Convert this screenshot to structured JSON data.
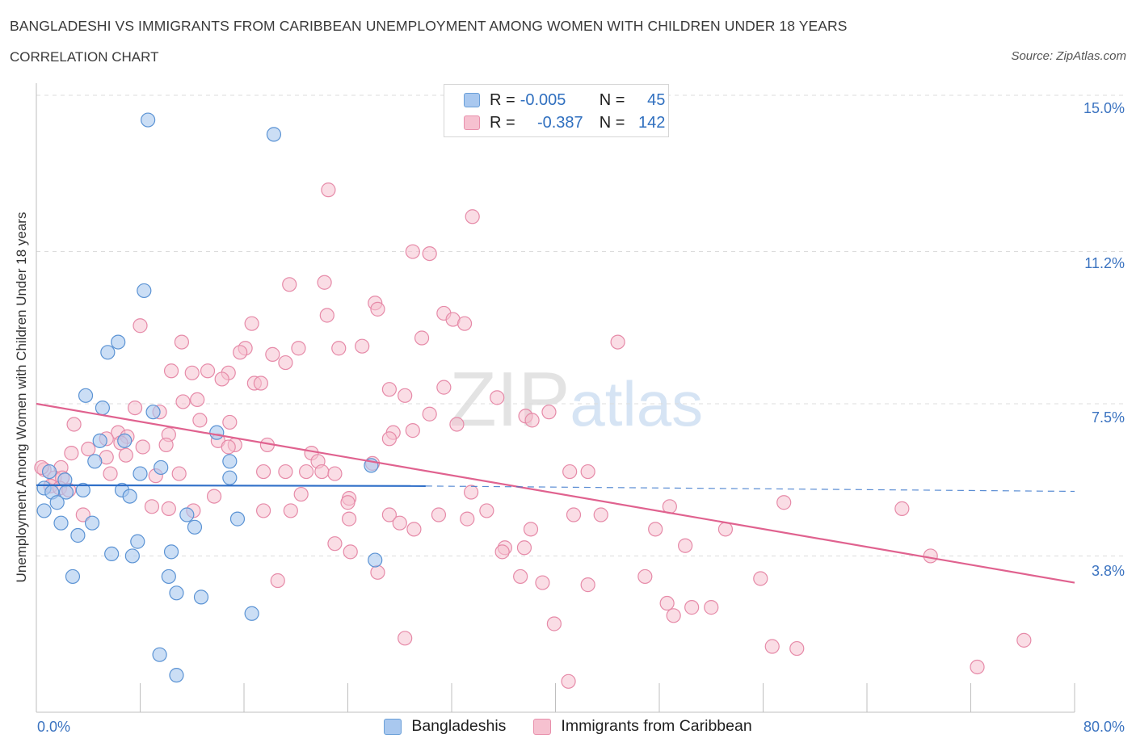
{
  "header": {
    "title": "BANGLADESHI VS IMMIGRANTS FROM CARIBBEAN UNEMPLOYMENT AMONG WOMEN WITH CHILDREN UNDER 18 YEARS",
    "subtitle": "CORRELATION CHART",
    "source": "Source: ZipAtlas.com"
  },
  "watermark": {
    "zip": "ZIP",
    "atlas": "atlas"
  },
  "legend": {
    "r_label": "R =",
    "n_label": "N =",
    "rows": [
      {
        "r": "-0.005",
        "n": "45",
        "color": "#a9c8ef",
        "border": "#6a9fd8"
      },
      {
        "r": "-0.387",
        "n": "142",
        "color": "#f6c1d0",
        "border": "#e890ac"
      }
    ]
  },
  "bottom_legend": [
    "Bangladeshis",
    "Immigrants from Caribbean"
  ],
  "colors": {
    "blue_fill": "#a9c8ef",
    "blue_stroke": "#5b93d4",
    "blue_line": "#2f6fc8",
    "pink_fill": "#f6c1d0",
    "pink_stroke": "#e68aa8",
    "pink_line": "#e0628f",
    "grid": "#dcdcdc",
    "tick_text": "#3b73c0"
  },
  "chart_data": {
    "type": "scatter",
    "title": "BANGLADESHI VS IMMIGRANTS FROM CARIBBEAN UNEMPLOYMENT AMONG WOMEN WITH CHILDREN UNDER 18 YEARS",
    "xlabel": "",
    "ylabel": "Unemployment Among Women with Children Under 18 years",
    "xlim": [
      0,
      80
    ],
    "ylim": [
      0,
      15
    ],
    "x_tick_labels": [
      "0.0%",
      "80.0%"
    ],
    "y_ticks": [
      3.8,
      7.5,
      11.2,
      15.0
    ],
    "y_tick_labels": [
      "3.8%",
      "7.5%",
      "11.2%",
      "15.0%"
    ],
    "grid": "horizontal dashed",
    "legend_position": "top-center",
    "series": [
      {
        "name": "Bangladeshis",
        "r": -0.005,
        "n": 45,
        "trend": {
          "x": [
            0,
            30
          ],
          "y": [
            5.52,
            5.5
          ],
          "dashed_extension": {
            "x": [
              30,
              80
            ],
            "y": [
              5.5,
              5.37
            ]
          }
        },
        "points": [
          [
            8.6,
            14.4
          ],
          [
            18.3,
            14.05
          ],
          [
            8.3,
            10.25
          ],
          [
            6.3,
            9.0
          ],
          [
            5.5,
            8.75
          ],
          [
            3.8,
            7.7
          ],
          [
            5.1,
            7.4
          ],
          [
            9.0,
            7.3
          ],
          [
            13.9,
            6.8
          ],
          [
            4.9,
            6.6
          ],
          [
            6.8,
            6.6
          ],
          [
            4.5,
            6.1
          ],
          [
            14.9,
            6.1
          ],
          [
            9.6,
            5.95
          ],
          [
            25.8,
            6.0
          ],
          [
            1.0,
            5.85
          ],
          [
            8.0,
            5.8
          ],
          [
            14.9,
            5.7
          ],
          [
            2.2,
            5.65
          ],
          [
            0.6,
            5.45
          ],
          [
            1.2,
            5.35
          ],
          [
            3.6,
            5.4
          ],
          [
            6.6,
            5.4
          ],
          [
            2.3,
            5.35
          ],
          [
            7.2,
            5.25
          ],
          [
            1.6,
            5.1
          ],
          [
            0.6,
            4.9
          ],
          [
            1.9,
            4.6
          ],
          [
            11.6,
            4.8
          ],
          [
            15.5,
            4.7
          ],
          [
            4.3,
            4.6
          ],
          [
            12.2,
            4.5
          ],
          [
            3.2,
            4.3
          ],
          [
            7.8,
            4.15
          ],
          [
            10.4,
            3.9
          ],
          [
            5.8,
            3.85
          ],
          [
            7.4,
            3.8
          ],
          [
            26.1,
            3.7
          ],
          [
            2.8,
            3.3
          ],
          [
            10.2,
            3.3
          ],
          [
            10.8,
            2.9
          ],
          [
            12.7,
            2.8
          ],
          [
            16.6,
            2.4
          ],
          [
            9.5,
            1.4
          ],
          [
            10.8,
            0.9
          ]
        ]
      },
      {
        "name": "Immigrants from Caribbean",
        "r": -0.387,
        "n": 142,
        "trend": {
          "x": [
            0,
            80
          ],
          "y": [
            7.5,
            3.15
          ]
        },
        "points": [
          [
            22.5,
            12.7
          ],
          [
            33.6,
            12.05
          ],
          [
            29.0,
            11.2
          ],
          [
            30.3,
            11.15
          ],
          [
            19.5,
            10.4
          ],
          [
            22.2,
            10.45
          ],
          [
            26.1,
            9.95
          ],
          [
            26.3,
            9.8
          ],
          [
            22.4,
            9.65
          ],
          [
            31.4,
            9.7
          ],
          [
            32.1,
            9.55
          ],
          [
            33.0,
            9.45
          ],
          [
            8.0,
            9.4
          ],
          [
            16.6,
            9.45
          ],
          [
            29.7,
            9.1
          ],
          [
            11.2,
            9.0
          ],
          [
            44.8,
            9.0
          ],
          [
            16.1,
            8.85
          ],
          [
            15.7,
            8.75
          ],
          [
            20.2,
            8.85
          ],
          [
            23.3,
            8.85
          ],
          [
            25.1,
            8.9
          ],
          [
            18.2,
            8.7
          ],
          [
            19.2,
            8.5
          ],
          [
            10.4,
            8.3
          ],
          [
            12.0,
            8.25
          ],
          [
            13.2,
            8.3
          ],
          [
            14.8,
            8.25
          ],
          [
            14.3,
            8.1
          ],
          [
            16.8,
            8.0
          ],
          [
            17.3,
            8.0
          ],
          [
            27.2,
            7.85
          ],
          [
            31.4,
            7.9
          ],
          [
            28.4,
            7.7
          ],
          [
            35.5,
            7.65
          ],
          [
            11.3,
            7.55
          ],
          [
            12.4,
            7.6
          ],
          [
            7.6,
            7.4
          ],
          [
            9.5,
            7.3
          ],
          [
            30.3,
            7.25
          ],
          [
            37.7,
            7.2
          ],
          [
            39.5,
            7.3
          ],
          [
            12.6,
            7.1
          ],
          [
            14.9,
            7.05
          ],
          [
            38.2,
            7.1
          ],
          [
            2.9,
            7.0
          ],
          [
            32.4,
            7.0
          ],
          [
            29.0,
            6.85
          ],
          [
            6.3,
            6.8
          ],
          [
            7.0,
            6.7
          ],
          [
            10.2,
            6.75
          ],
          [
            27.5,
            6.8
          ],
          [
            5.4,
            6.65
          ],
          [
            6.5,
            6.55
          ],
          [
            14.0,
            6.6
          ],
          [
            27.2,
            6.65
          ],
          [
            10.0,
            6.5
          ],
          [
            15.3,
            6.5
          ],
          [
            17.8,
            6.5
          ],
          [
            8.2,
            6.45
          ],
          [
            14.8,
            6.45
          ],
          [
            4.0,
            6.4
          ],
          [
            2.7,
            6.3
          ],
          [
            5.4,
            6.2
          ],
          [
            6.9,
            6.25
          ],
          [
            21.2,
            6.3
          ],
          [
            21.7,
            6.1
          ],
          [
            25.9,
            6.05
          ],
          [
            1.9,
            5.95
          ],
          [
            0.6,
            5.9
          ],
          [
            17.5,
            5.85
          ],
          [
            19.2,
            5.85
          ],
          [
            22.0,
            5.85
          ],
          [
            41.1,
            5.85
          ],
          [
            42.5,
            5.85
          ],
          [
            1.4,
            5.7
          ],
          [
            2.0,
            5.7
          ],
          [
            5.7,
            5.8
          ],
          [
            11.0,
            5.8
          ],
          [
            20.8,
            5.85
          ],
          [
            23.0,
            5.8
          ],
          [
            9.2,
            5.75
          ],
          [
            1.1,
            5.5
          ],
          [
            1.8,
            5.45
          ],
          [
            2.5,
            5.4
          ],
          [
            33.5,
            5.35
          ],
          [
            20.4,
            5.3
          ],
          [
            13.7,
            5.25
          ],
          [
            24.1,
            5.2
          ],
          [
            57.6,
            5.1
          ],
          [
            24.0,
            5.1
          ],
          [
            48.8,
            5.0
          ],
          [
            66.7,
            4.95
          ],
          [
            8.9,
            5.0
          ],
          [
            10.2,
            4.95
          ],
          [
            12.1,
            4.9
          ],
          [
            17.5,
            4.9
          ],
          [
            19.6,
            4.9
          ],
          [
            34.7,
            4.9
          ],
          [
            3.6,
            4.8
          ],
          [
            27.2,
            4.8
          ],
          [
            31.0,
            4.8
          ],
          [
            41.4,
            4.8
          ],
          [
            43.5,
            4.8
          ],
          [
            24.1,
            4.7
          ],
          [
            33.2,
            4.7
          ],
          [
            28.0,
            4.6
          ],
          [
            47.7,
            4.45
          ],
          [
            38.1,
            4.45
          ],
          [
            53.1,
            4.45
          ],
          [
            29.1,
            4.45
          ],
          [
            23.0,
            4.1
          ],
          [
            50.0,
            4.05
          ],
          [
            36.1,
            4.0
          ],
          [
            37.6,
            4.0
          ],
          [
            35.9,
            3.9
          ],
          [
            24.2,
            3.9
          ],
          [
            68.9,
            3.8
          ],
          [
            26.3,
            3.4
          ],
          [
            37.3,
            3.3
          ],
          [
            46.9,
            3.3
          ],
          [
            55.8,
            3.25
          ],
          [
            18.6,
            3.2
          ],
          [
            39.0,
            3.15
          ],
          [
            42.5,
            3.1
          ],
          [
            48.6,
            2.65
          ],
          [
            50.5,
            2.55
          ],
          [
            52.0,
            2.55
          ],
          [
            49.1,
            2.35
          ],
          [
            39.9,
            2.15
          ],
          [
            28.4,
            1.8
          ],
          [
            76.1,
            1.75
          ],
          [
            56.7,
            1.6
          ],
          [
            58.6,
            1.55
          ],
          [
            72.5,
            1.1
          ],
          [
            41.0,
            0.75
          ],
          [
            0.4,
            5.95
          ]
        ]
      }
    ]
  }
}
